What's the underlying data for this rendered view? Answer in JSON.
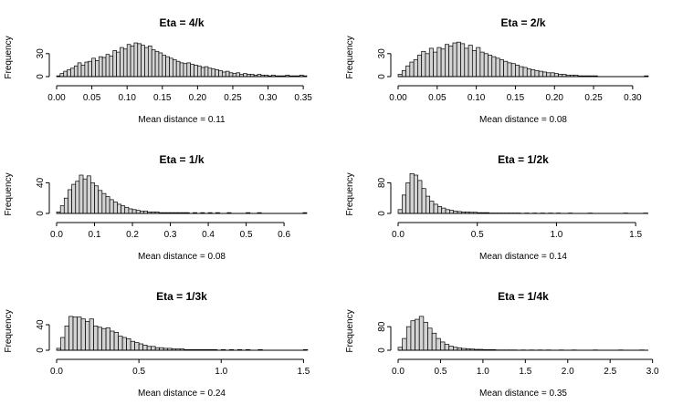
{
  "chart_data": [
    {
      "type": "bar",
      "title": "Eta = 4/k",
      "xlabel": "Mean distance = 0.11",
      "ylabel": "Frequency",
      "xlim": [
        0,
        0.355
      ],
      "ylim": [
        0,
        50
      ],
      "xticks": [
        0.0,
        0.05,
        0.1,
        0.15,
        0.2,
        0.25,
        0.3,
        0.35
      ],
      "xtick_labels": [
        "0.00",
        "0.05",
        "0.10",
        "0.15",
        "0.20",
        "0.25",
        "0.30",
        "0.35"
      ],
      "yticks": [
        0,
        30
      ],
      "ytick_labels": [
        "0",
        "30"
      ],
      "bin_start": 0,
      "bin_width": 0.005,
      "values": [
        1,
        4,
        7,
        9,
        11,
        14,
        18,
        15,
        19,
        20,
        24,
        21,
        26,
        25,
        29,
        27,
        34,
        32,
        38,
        36,
        42,
        40,
        44,
        43,
        41,
        38,
        40,
        35,
        33,
        31,
        28,
        26,
        24,
        22,
        20,
        18,
        17,
        18,
        16,
        15,
        14,
        12,
        13,
        11,
        10,
        9,
        8,
        6,
        7,
        5,
        4,
        5,
        3,
        4,
        3,
        3,
        2,
        3,
        2,
        2,
        1,
        2,
        1,
        1,
        1,
        2,
        1,
        1,
        1,
        2,
        1
      ]
    },
    {
      "type": "bar",
      "title": "Eta = 2/k",
      "xlabel": "Mean distance = 0.08",
      "ylabel": "Frequency",
      "xlim": [
        0,
        0.32
      ],
      "ylim": [
        0,
        50
      ],
      "xticks": [
        0.0,
        0.05,
        0.1,
        0.15,
        0.2,
        0.25,
        0.3
      ],
      "xtick_labels": [
        "0.00",
        "0.05",
        "0.10",
        "0.15",
        "0.20",
        "0.25",
        "0.30"
      ],
      "yticks": [
        0,
        30
      ],
      "ytick_labels": [
        "0",
        "30"
      ],
      "bin_start": 0,
      "bin_width": 0.005,
      "values": [
        3,
        8,
        14,
        19,
        22,
        28,
        33,
        30,
        37,
        32,
        38,
        36,
        42,
        40,
        44,
        45,
        43,
        37,
        41,
        34,
        38,
        32,
        30,
        28,
        26,
        24,
        22,
        20,
        18,
        17,
        15,
        13,
        12,
        10,
        9,
        8,
        7,
        6,
        5,
        5,
        4,
        3,
        3,
        2,
        2,
        2,
        1,
        1,
        1,
        1,
        1,
        0,
        0,
        0,
        0,
        0,
        0,
        0,
        0,
        0,
        0,
        0,
        0,
        1
      ]
    },
    {
      "type": "bar",
      "title": "Eta = 1/k",
      "xlabel": "Mean distance = 0.08",
      "ylabel": "Frequency",
      "xlim": [
        0,
        0.66
      ],
      "ylim": [
        0,
        50
      ],
      "xticks": [
        0.0,
        0.1,
        0.2,
        0.3,
        0.4,
        0.5,
        0.6
      ],
      "xtick_labels": [
        "0.0",
        "0.1",
        "0.2",
        "0.3",
        "0.4",
        "0.5",
        "0.6"
      ],
      "yticks": [
        0,
        40
      ],
      "ytick_labels": [
        "0",
        "40"
      ],
      "bin_start": 0,
      "bin_width": 0.01,
      "values": [
        2,
        10,
        20,
        31,
        38,
        42,
        50,
        45,
        49,
        40,
        36,
        30,
        26,
        22,
        18,
        15,
        12,
        10,
        8,
        6,
        5,
        4,
        3,
        3,
        2,
        2,
        2,
        1,
        1,
        1,
        1,
        1,
        1,
        1,
        1,
        0,
        1,
        0,
        1,
        0,
        1,
        0,
        1,
        0,
        0,
        1,
        0,
        0,
        0,
        0,
        1,
        0,
        0,
        1,
        0,
        0,
        0,
        0,
        0,
        0,
        0,
        0,
        0,
        0,
        0,
        1
      ]
    },
    {
      "type": "bar",
      "title": "Eta = 1/2k",
      "xlabel": "Mean distance = 0.14",
      "ylabel": "Frequency",
      "xlim": [
        0,
        1.58
      ],
      "ylim": [
        0,
        100
      ],
      "xticks": [
        0.0,
        0.5,
        1.0,
        1.5
      ],
      "xtick_labels": [
        "0.0",
        "0.5",
        "1.0",
        "1.5"
      ],
      "yticks": [
        0,
        80
      ],
      "ytick_labels": [
        "0",
        "80"
      ],
      "bin_start": 0,
      "bin_width": 0.025,
      "values": [
        10,
        48,
        80,
        104,
        100,
        86,
        65,
        45,
        32,
        24,
        18,
        14,
        10,
        8,
        6,
        5,
        4,
        4,
        3,
        3,
        2,
        2,
        2,
        1,
        1,
        1,
        1,
        1,
        1,
        1,
        1,
        0,
        1,
        0,
        1,
        0,
        1,
        0,
        1,
        0,
        1,
        0,
        0,
        1,
        0,
        0,
        0,
        0,
        1,
        0,
        0,
        0,
        0,
        0,
        0,
        0,
        0,
        1,
        0,
        0,
        0,
        0,
        1
      ]
    },
    {
      "type": "bar",
      "title": "Eta = 1/3k",
      "xlabel": "Mean distance = 0.24",
      "ylabel": "Frequency",
      "xlim": [
        0,
        1.52
      ],
      "ylim": [
        0,
        60
      ],
      "xticks": [
        0.0,
        0.5,
        1.0,
        1.5
      ],
      "xtick_labels": [
        "0.0",
        "0.5",
        "1.0",
        "1.5"
      ],
      "yticks": [
        0,
        40
      ],
      "ytick_labels": [
        "0",
        "40"
      ],
      "bin_start": 0,
      "bin_width": 0.025,
      "values": [
        3,
        20,
        38,
        53,
        52,
        52,
        49,
        45,
        49,
        38,
        36,
        34,
        35,
        30,
        28,
        22,
        20,
        18,
        14,
        12,
        10,
        8,
        6,
        6,
        4,
        4,
        3,
        3,
        2,
        2,
        2,
        1,
        1,
        1,
        1,
        1,
        1,
        1,
        1,
        0,
        1,
        0,
        1,
        0,
        1,
        0,
        1,
        0,
        0,
        1,
        0,
        0,
        0,
        0,
        0,
        0,
        0,
        0,
        0,
        0,
        1
      ]
    },
    {
      "type": "bar",
      "title": "Eta = 1/4k",
      "xlabel": "Mean distance = 0.35",
      "ylabel": "Frequency",
      "xlim": [
        0,
        2.95
      ],
      "ylim": [
        0,
        130
      ],
      "xticks": [
        0.0,
        0.5,
        1.0,
        1.5,
        2.0,
        2.5,
        3.0
      ],
      "xtick_labels": [
        "0.0",
        "0.5",
        "1.0",
        "1.5",
        "2.0",
        "2.5",
        "3.0"
      ],
      "yticks": [
        0,
        80
      ],
      "ytick_labels": [
        "0",
        "80"
      ],
      "bin_start": 0,
      "bin_width": 0.05,
      "values": [
        10,
        40,
        80,
        100,
        105,
        115,
        95,
        75,
        58,
        40,
        28,
        20,
        14,
        10,
        8,
        6,
        5,
        4,
        3,
        3,
        2,
        2,
        2,
        1,
        1,
        1,
        1,
        1,
        0,
        1,
        0,
        1,
        0,
        1,
        0,
        1,
        0,
        0,
        1,
        0,
        0,
        1,
        0,
        0,
        0,
        0,
        1,
        0,
        0,
        0,
        0,
        0,
        1,
        0,
        0,
        0,
        0,
        1
      ]
    }
  ]
}
